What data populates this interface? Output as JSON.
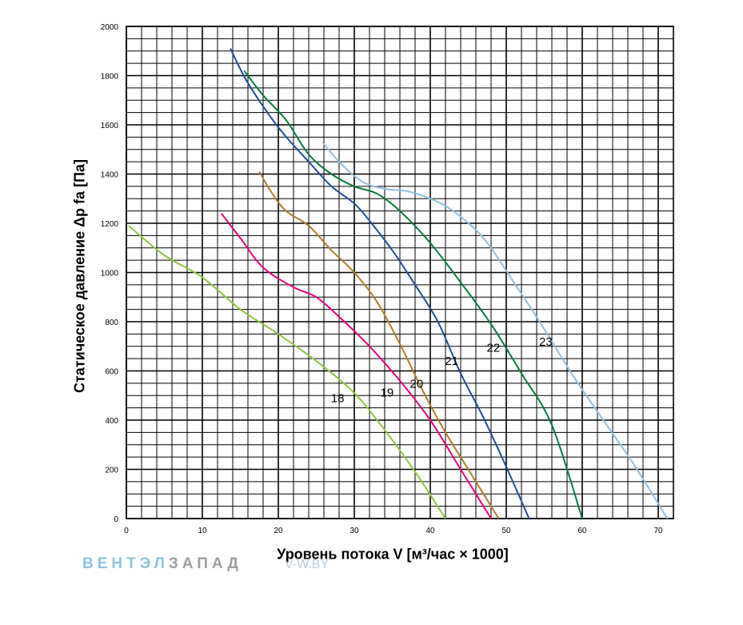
{
  "chart_data": {
    "type": "line",
    "xlabel": "Уровень потока V [м³/час × 1000]",
    "ylabel": "Статическое давление Δp fa [Па]",
    "xlim": [
      0,
      72
    ],
    "ylim": [
      0,
      2000
    ],
    "xticks": [
      0,
      10,
      20,
      30,
      40,
      50,
      60,
      70
    ],
    "yticks": [
      0,
      200,
      400,
      600,
      800,
      1000,
      1200,
      1400,
      1600,
      1800,
      2000
    ],
    "x_minor_step": 2,
    "y_minor_step": 50,
    "grid": true,
    "legend": "none",
    "series": [
      {
        "name": "18",
        "color": "#8dc63f",
        "label_at": [
          27.8,
          490
        ],
        "points": [
          [
            0.3,
            1190
          ],
          [
            5,
            1070
          ],
          [
            10,
            980
          ],
          [
            15,
            850
          ],
          [
            20,
            750
          ],
          [
            25,
            640
          ],
          [
            30,
            510
          ],
          [
            34,
            360
          ],
          [
            38,
            190
          ],
          [
            42,
            0
          ]
        ]
      },
      {
        "name": "19",
        "color": "#e6007e",
        "label_at": [
          34.3,
          512
        ],
        "points": [
          [
            12.5,
            1240
          ],
          [
            15,
            1140
          ],
          [
            18,
            1020
          ],
          [
            22,
            940
          ],
          [
            25,
            900
          ],
          [
            28,
            820
          ],
          [
            32,
            700
          ],
          [
            36,
            560
          ],
          [
            40,
            400
          ],
          [
            44,
            200
          ],
          [
            48,
            0
          ]
        ]
      },
      {
        "name": "20",
        "color": "#b07d2b",
        "label_at": [
          38.2,
          548
        ],
        "points": [
          [
            17.5,
            1410
          ],
          [
            19,
            1330
          ],
          [
            21,
            1250
          ],
          [
            24,
            1190
          ],
          [
            27,
            1090
          ],
          [
            30,
            1000
          ],
          [
            33,
            880
          ],
          [
            36,
            710
          ],
          [
            39,
            520
          ],
          [
            42,
            350
          ],
          [
            45,
            200
          ],
          [
            49,
            0
          ]
        ]
      },
      {
        "name": "21",
        "color": "#1f4e96",
        "label_at": [
          42.8,
          640
        ],
        "points": [
          [
            13.7,
            1910
          ],
          [
            16,
            1770
          ],
          [
            20,
            1590
          ],
          [
            24,
            1450
          ],
          [
            27,
            1350
          ],
          [
            30,
            1280
          ],
          [
            32,
            1210
          ],
          [
            35,
            1090
          ],
          [
            38,
            950
          ],
          [
            41,
            800
          ],
          [
            44,
            590
          ],
          [
            47,
            410
          ],
          [
            50,
            210
          ],
          [
            53,
            0
          ]
        ]
      },
      {
        "name": "22",
        "color": "#0a7a3c",
        "label_at": [
          48.3,
          695
        ],
        "points": [
          [
            15.5,
            1820
          ],
          [
            18,
            1720
          ],
          [
            21,
            1620
          ],
          [
            24,
            1480
          ],
          [
            27,
            1400
          ],
          [
            30,
            1350
          ],
          [
            33,
            1320
          ],
          [
            36,
            1250
          ],
          [
            40,
            1120
          ],
          [
            44,
            960
          ],
          [
            48,
            790
          ],
          [
            52,
            590
          ],
          [
            56,
            380
          ],
          [
            60,
            0
          ]
        ]
      },
      {
        "name": "23",
        "color": "#8fbfe0",
        "label_at": [
          55.2,
          718
        ],
        "points": [
          [
            25.8,
            1530
          ],
          [
            28,
            1450
          ],
          [
            31,
            1370
          ],
          [
            34,
            1340
          ],
          [
            37,
            1330
          ],
          [
            40,
            1300
          ],
          [
            43,
            1250
          ],
          [
            47,
            1140
          ],
          [
            51,
            960
          ],
          [
            55,
            770
          ],
          [
            59,
            570
          ],
          [
            63,
            390
          ],
          [
            67,
            210
          ],
          [
            71.2,
            0
          ]
        ]
      }
    ]
  },
  "footer": {
    "brand_part1": "ВЕНТЭЛ",
    "brand_part2": "ЗАПАД",
    "site": "V-W.BY"
  }
}
